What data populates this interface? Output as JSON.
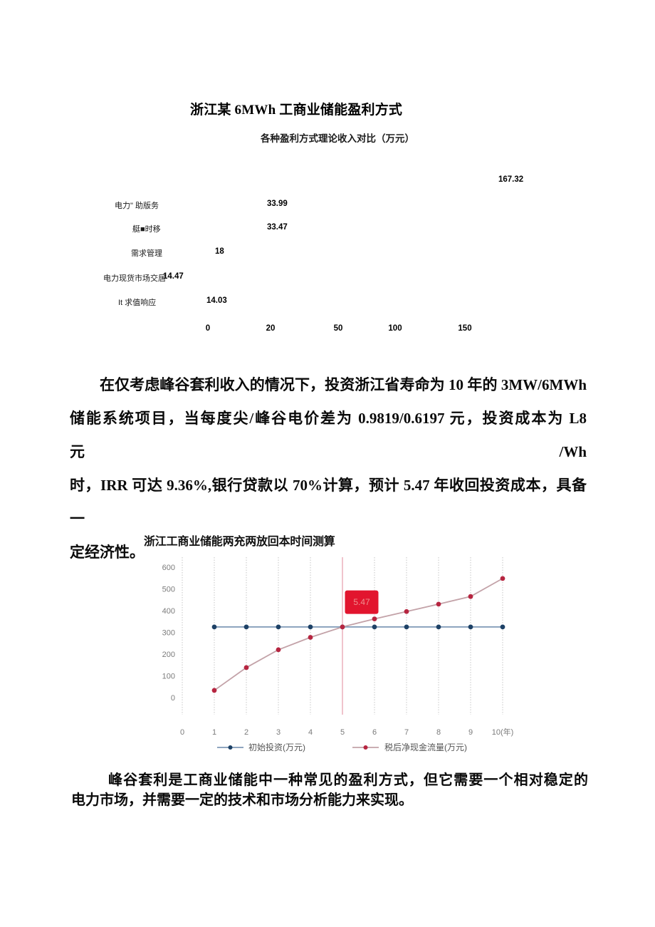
{
  "doc": {
    "title": "浙江某 6MWh 工商业储能盈利方式"
  },
  "chart_data": [
    {
      "type": "bar",
      "orientation": "horizontal",
      "title": "各种盈利方式理论收入对比（万元）",
      "categories": [
        "",
        "电力\" 助版务",
        "艇■时移",
        "需求管理",
        "电力现货市场交居",
        "It 求值响应"
      ],
      "values": [
        167.32,
        33.99,
        33.47,
        18,
        14.47,
        14.03
      ],
      "value_labels": [
        "167.32",
        "33.99",
        "33.47",
        "18",
        "14.47",
        "14.03"
      ],
      "xticks": [
        "0",
        "20",
        "50",
        "100",
        "150"
      ],
      "xlim": [
        0,
        175
      ],
      "grid": false,
      "bars_visible": false
    },
    {
      "type": "line",
      "title": "浙江工商业储能两充两放回本时间测算",
      "xticks": [
        "0",
        "1",
        "2",
        "3",
        "4",
        "5",
        "6",
        "7",
        "8",
        "9",
        "10(年)"
      ],
      "yticks": [
        0,
        100,
        200,
        300,
        400,
        500,
        600
      ],
      "xlim": [
        0,
        10
      ],
      "ylim": [
        0,
        650
      ],
      "grid": "vertical-dotted",
      "highlight_x": 5,
      "highlight_color": "#edb6bf",
      "legend_position": "bottom",
      "series": [
        {
          "name": "初始投资(万元)",
          "x": [
            1,
            2,
            3,
            4,
            5,
            6,
            7,
            8,
            9,
            10
          ],
          "values": [
            325,
            325,
            325,
            325,
            325,
            325,
            325,
            325,
            325,
            325
          ],
          "line_color": "#7e98b6",
          "marker_color": "#1d4166"
        },
        {
          "name": "税后净现金流量(万元)",
          "x": [
            1,
            2,
            3,
            4,
            5,
            6,
            7,
            8,
            9,
            10
          ],
          "values": [
            33,
            138,
            220,
            277,
            325,
            362,
            396,
            430,
            465,
            548
          ],
          "line_color": "#c3a2a8",
          "marker_color": "#b62540"
        }
      ],
      "annotation": {
        "text": "5.47",
        "x": 5.6,
        "y": 439,
        "box_color": "#e2152e",
        "text_color": "#ee8e8e"
      }
    }
  ],
  "paragraphs": {
    "p1": {
      "lines": [
        "在仅考虑峰谷套利收入的情况下，投资浙江省寿命为 10 年的 3MW/6MWh",
        "储能系统项目，当每度尖/峰谷电价差为 0.9819/0.6197 元，投资成本为 L8 元/Wh",
        "时，IRR 可达 9.36%,银行贷款以 70%计算，预计 5.47 年收回投资成本，具备一",
        "定经济性。"
      ]
    },
    "p2": {
      "lines": [
        "峰谷套利是工商业储能中一种常见的盈利方式，但它需要一个相对稳定的",
        "电力市场，并需要一定的技术和市场分析能力来实现。"
      ]
    }
  }
}
